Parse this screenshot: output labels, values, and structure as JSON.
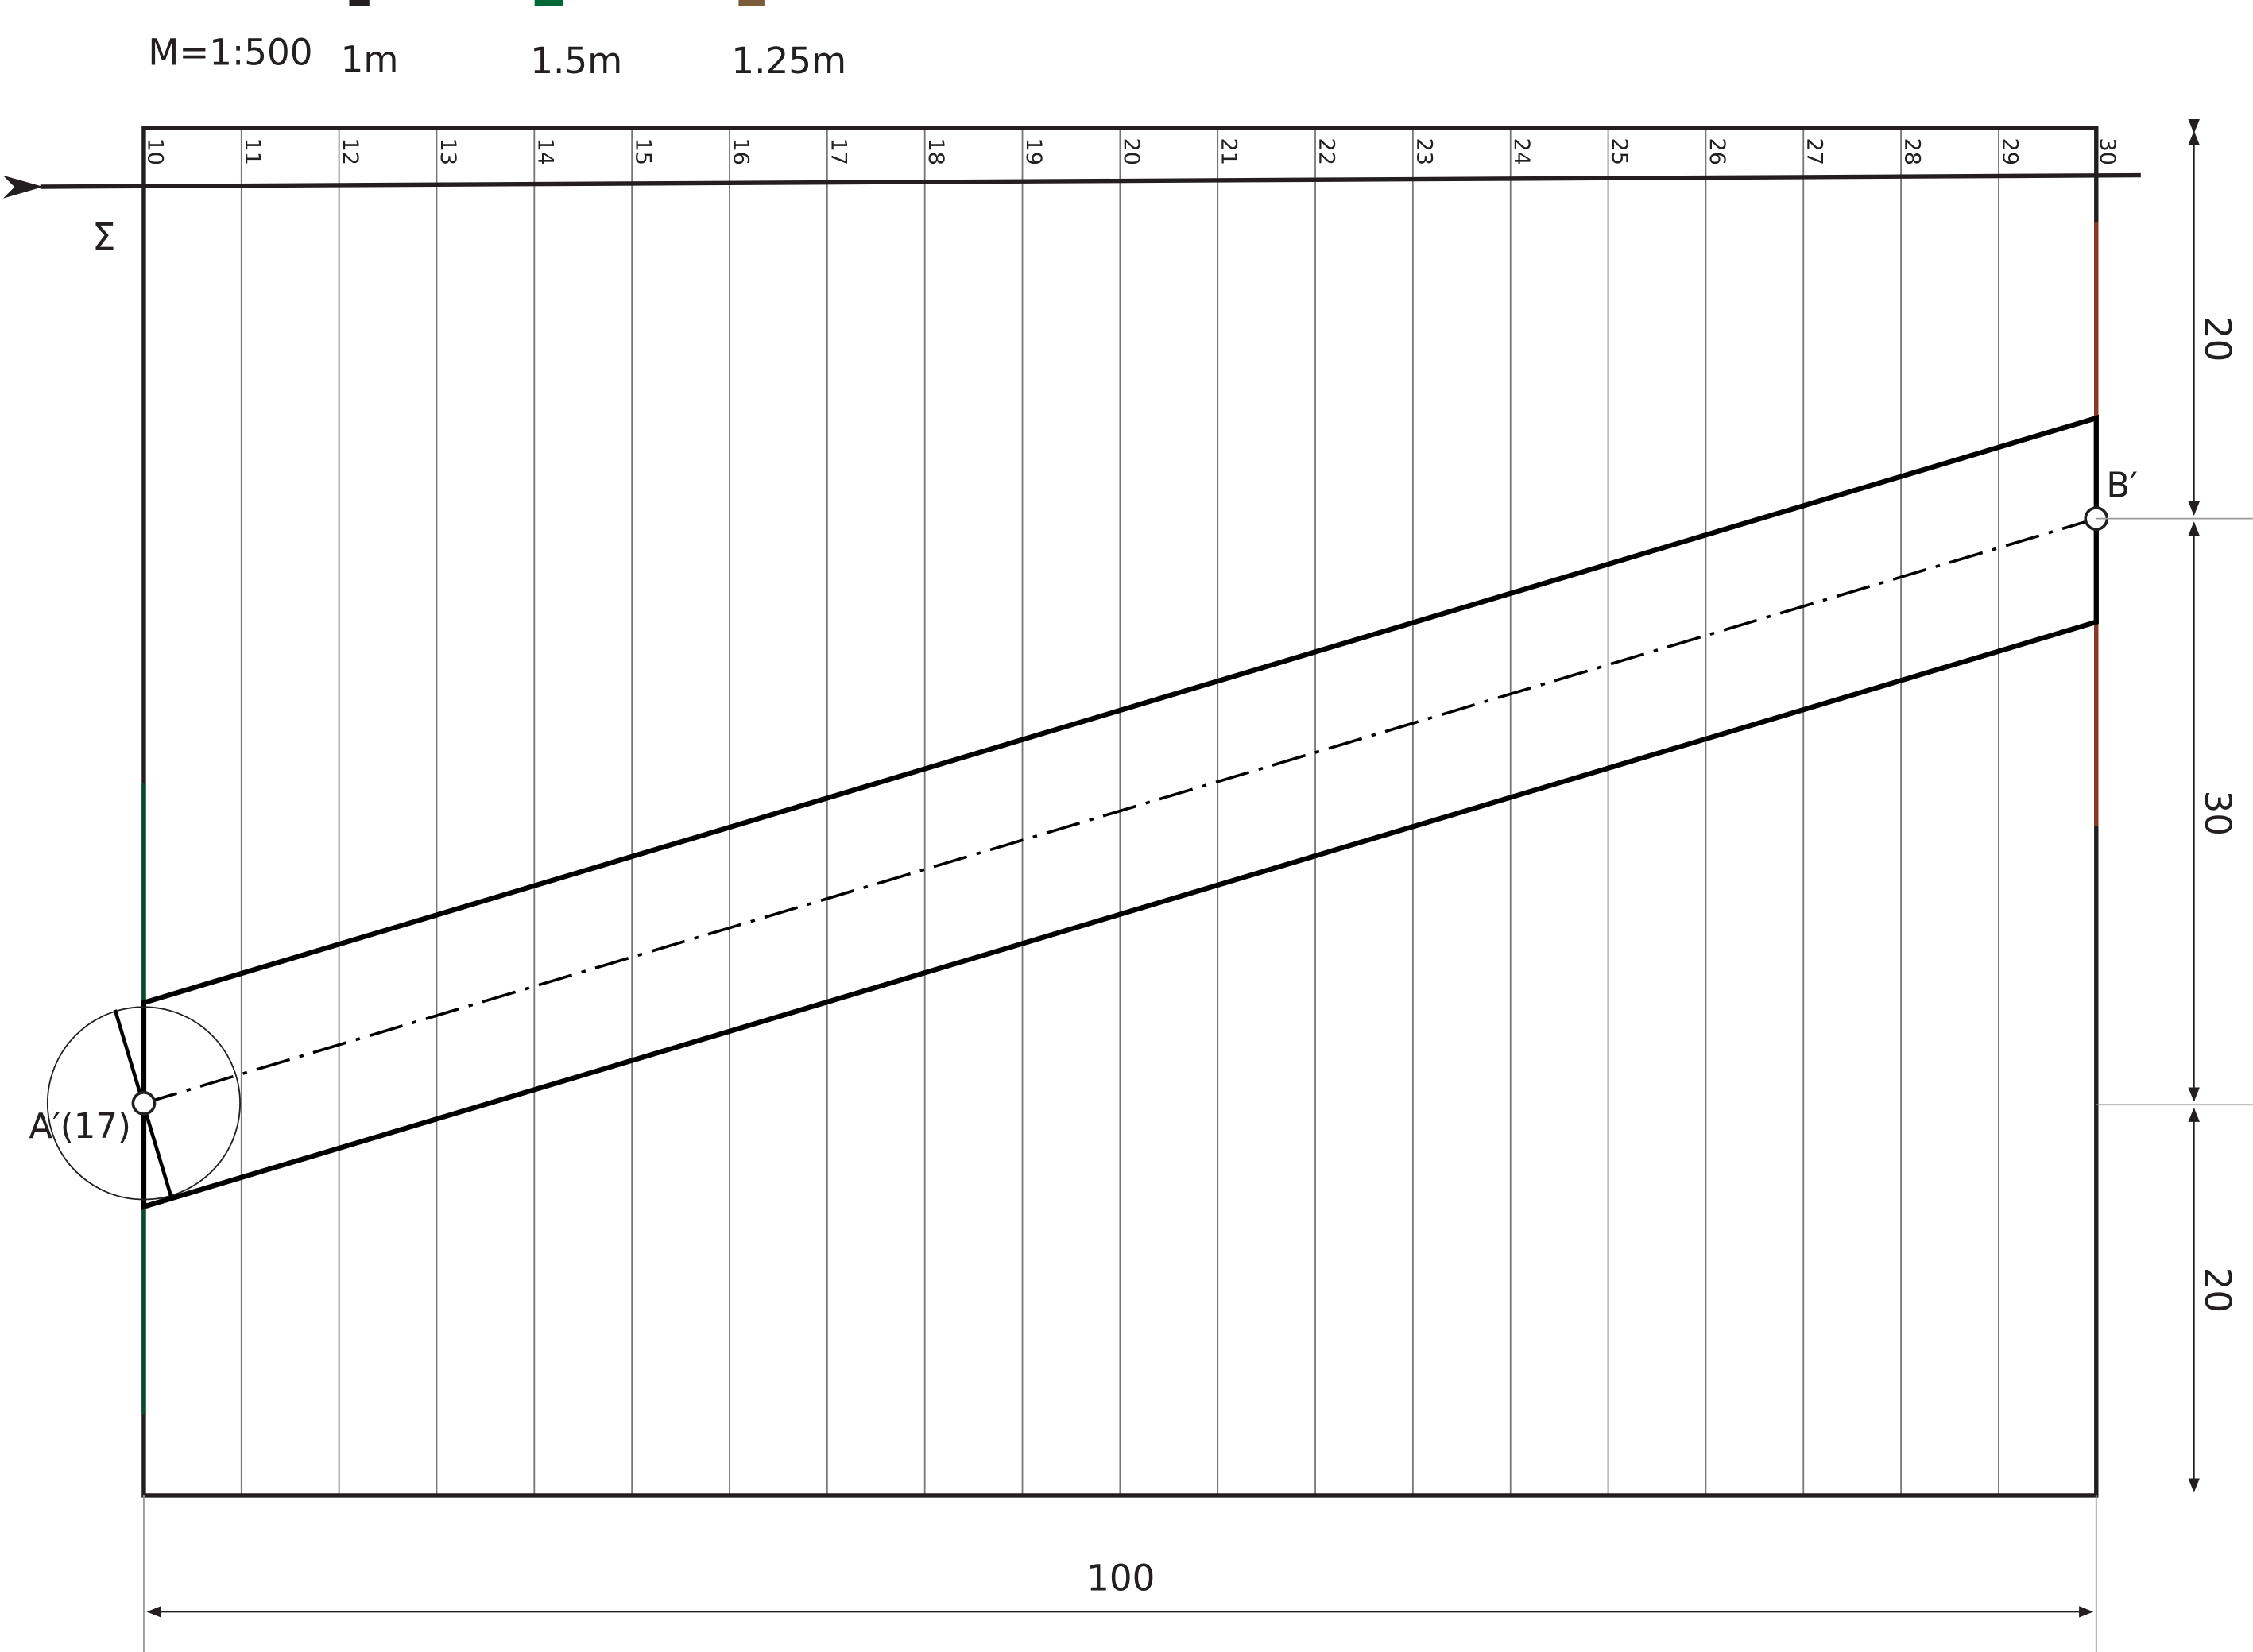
{
  "header": {
    "scale": "M=1:500",
    "legend": [
      {
        "label": "1m",
        "color": "#231f20"
      },
      {
        "label": "1.5m",
        "color": "#006837"
      },
      {
        "label": "1.25m",
        "color": "#7a5c3a"
      }
    ]
  },
  "plan": {
    "grid_labels": [
      "10",
      "11",
      "12",
      "13",
      "14",
      "15",
      "16",
      "17",
      "18",
      "19",
      "20",
      "21",
      "22",
      "23",
      "24",
      "25",
      "26",
      "27",
      "28",
      "29",
      "30"
    ],
    "sigma_label": "Σ",
    "point_a_label": "A′(17)",
    "point_b_label": "B′",
    "edge_colors": {
      "left": "#0b4a2a",
      "right": "#8b3a2a"
    }
  },
  "dimensions": {
    "right": [
      "20",
      "30",
      "20"
    ],
    "bottom": "100"
  }
}
